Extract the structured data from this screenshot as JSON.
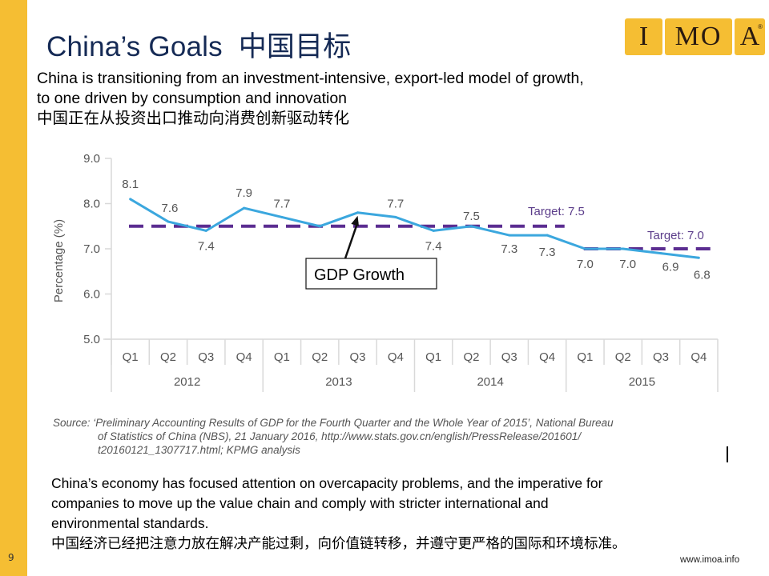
{
  "slide": {
    "page_number": "9",
    "title": "China’s Goals  中国目标",
    "logo": {
      "letters": [
        "I",
        "MO",
        "A"
      ],
      "registered": "®"
    },
    "intro_lines": [
      "China is transitioning from an investment-intensive, export-led model of growth,",
      "to one driven by consumption and innovation",
      "中国正在从投资出口推动向消费创新驱动转化"
    ],
    "source_lines": [
      "Source: ‘Preliminary Accounting Results of GDP for the Fourth Quarter and the Whole Year of 2015’, National Bureau",
      "of Statistics of China (NBS), 21 January 2016, http://www.stats.gov.cn/english/PressRelease/201601/",
      "t20160121_1307717.html; KPMG analysis"
    ],
    "body_lines": [
      "China’s economy has focused attention on overcapacity problems, and the imperative for",
      "companies to move up the value chain and comply with stricter international and",
      "environmental standards.",
      "中国经济已经把注意力放在解决产能过剩，向价值链转移，并遵守更严格的国际和环境标准。"
    ],
    "footer_url": "www.imoa.info",
    "colors": {
      "sidebar": "#F5BE33",
      "title": "#152A55",
      "line": "#3BA7DE",
      "target": "#5B2D91",
      "axis": "#d9d9d9"
    }
  },
  "chart_data": {
    "type": "line",
    "title": "",
    "ylabel": "Percentage (%)",
    "xlabel": "",
    "ylim": [
      5.0,
      9.0
    ],
    "yticks": [
      "5.0",
      "6.0",
      "7.0",
      "8.0",
      "9.0"
    ],
    "categories": [
      "Q1",
      "Q2",
      "Q3",
      "Q4",
      "Q1",
      "Q2",
      "Q3",
      "Q4",
      "Q1",
      "Q2",
      "Q3",
      "Q4",
      "Q1",
      "Q2",
      "Q3",
      "Q4"
    ],
    "groups": [
      {
        "label": "2012",
        "count": 4
      },
      {
        "label": "2013",
        "count": 4
      },
      {
        "label": "2014",
        "count": 4
      },
      {
        "label": "2015",
        "count": 4
      }
    ],
    "series": [
      {
        "name": "GDP Growth",
        "values": [
          8.1,
          7.6,
          7.4,
          7.9,
          7.7,
          7.5,
          7.8,
          7.7,
          7.4,
          7.5,
          7.3,
          7.3,
          7.0,
          7.0,
          6.9,
          6.8
        ],
        "labels": [
          "8.1",
          "7.6",
          "7.4",
          "7.9",
          "7.7",
          "",
          "",
          "7.7",
          "7.4",
          "7.5",
          "7.3",
          "7.3",
          "7.0",
          "7.0",
          "6.9",
          "6.8"
        ]
      }
    ],
    "targets": [
      {
        "label": "Target:  7.5",
        "value": 7.5,
        "from_index": 0,
        "to_index": 12
      },
      {
        "label": "Target:  7.0",
        "value": 7.0,
        "from_index": 12,
        "to_index": 16
      }
    ],
    "annotation": {
      "text": "GDP Growth",
      "points_to_index": 6
    },
    "grid": false,
    "legend": "none"
  }
}
